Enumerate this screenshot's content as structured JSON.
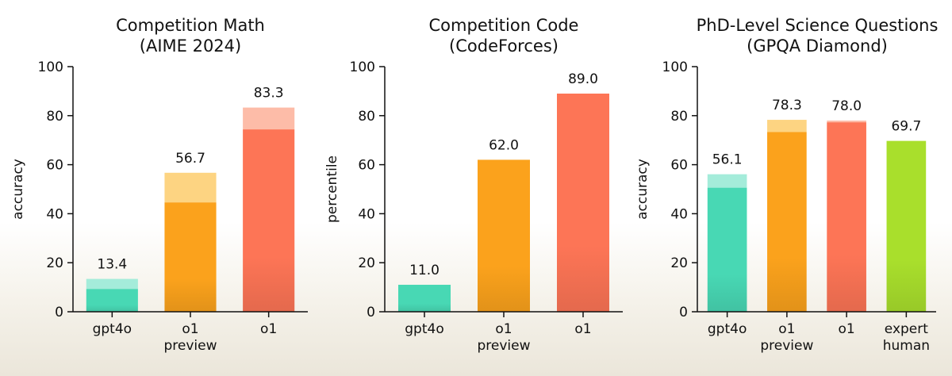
{
  "chart_data": [
    {
      "type": "bar",
      "title": "Competition Math",
      "subtitle": "(AIME 2024)",
      "ylabel": "accuracy",
      "ylim": [
        0,
        100
      ],
      "yticks": [
        0,
        20,
        40,
        60,
        80,
        100
      ],
      "categories": [
        [
          "gpt4o"
        ],
        [
          "o1",
          "preview"
        ],
        [
          "o1"
        ]
      ],
      "values": [
        13.4,
        56.7,
        83.3
      ],
      "base_values": [
        9.3,
        44.6,
        74.4
      ],
      "value_labels": [
        "13.4",
        "56.7",
        "83.3"
      ],
      "colors": [
        "#48d8b4",
        "#fba21c",
        "#fd7556"
      ],
      "light_colors": [
        "#a4ecda",
        "#fdd482",
        "#fdbca8"
      ]
    },
    {
      "type": "bar",
      "title": "Competition Code",
      "subtitle": "(CodeForces)",
      "ylabel": "percentile",
      "ylim": [
        0,
        100
      ],
      "yticks": [
        0,
        20,
        40,
        60,
        80,
        100
      ],
      "categories": [
        [
          "gpt4o"
        ],
        [
          "o1",
          "preview"
        ],
        [
          "o1"
        ]
      ],
      "values": [
        11.0,
        62.0,
        89.0
      ],
      "value_labels": [
        "11.0",
        "62.0",
        "89.0"
      ],
      "colors": [
        "#48d8b4",
        "#fba21c",
        "#fd7556"
      ]
    },
    {
      "type": "bar",
      "title": "PhD-Level Science Questions",
      "subtitle": "(GPQA Diamond)",
      "ylabel": "accuracy",
      "ylim": [
        0,
        100
      ],
      "yticks": [
        0,
        20,
        40,
        60,
        80,
        100
      ],
      "categories": [
        [
          "gpt4o"
        ],
        [
          "o1",
          "preview"
        ],
        [
          "o1"
        ],
        [
          "expert",
          "human"
        ]
      ],
      "values": [
        56.1,
        78.3,
        78.0,
        69.7
      ],
      "base_values": [
        50.6,
        73.3,
        77.3,
        null
      ],
      "value_labels": [
        "56.1",
        "78.3",
        "78.0",
        "69.7"
      ],
      "colors": [
        "#48d8b4",
        "#fba21c",
        "#fd7556",
        "#a9df2c"
      ],
      "light_colors": [
        "#a4ecda",
        "#fdd482",
        "#fdbca8",
        null
      ]
    }
  ]
}
